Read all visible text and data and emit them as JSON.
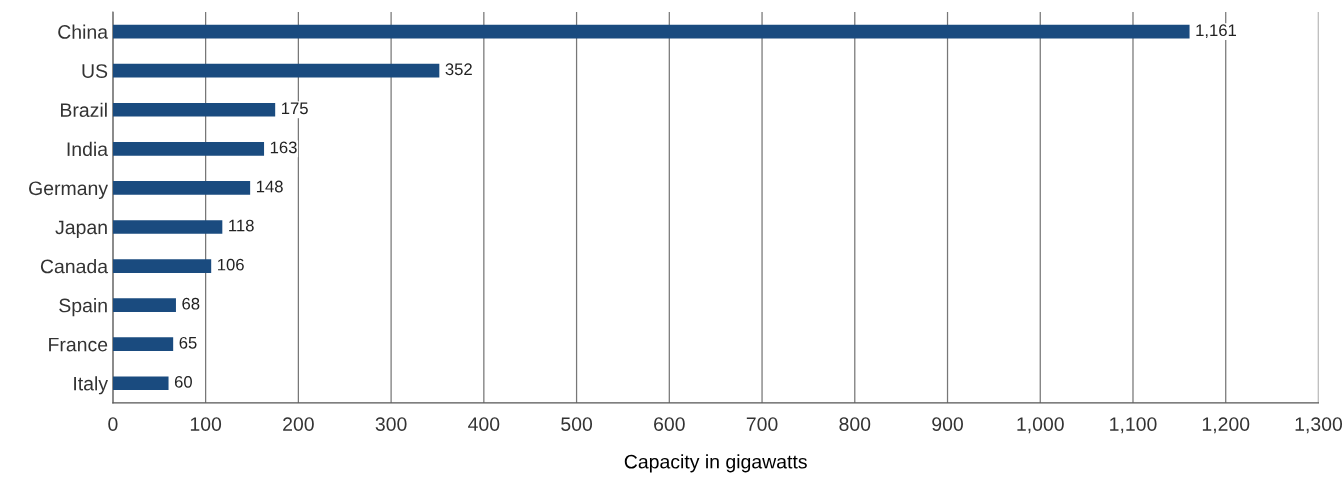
{
  "chart_data": {
    "type": "bar",
    "orientation": "horizontal",
    "xlabel": "Capacity in gigawatts",
    "categories": [
      "China",
      "US",
      "Brazil",
      "India",
      "Germany",
      "Japan",
      "Canada",
      "Spain",
      "France",
      "Italy"
    ],
    "values": [
      1161,
      352,
      175,
      163,
      148,
      118,
      106,
      68,
      65,
      60
    ],
    "value_labels": [
      "1,161",
      "352",
      "175",
      "163",
      "148",
      "118",
      "106",
      "68",
      "65",
      "60"
    ],
    "color": "#1a4b7f",
    "xlim": [
      0,
      1300
    ],
    "xticks": [
      0,
      100,
      200,
      300,
      400,
      500,
      600,
      700,
      800,
      900,
      {
        "value": 1000,
        "label": "1,000"
      },
      {
        "value": 1100,
        "label": "1,100"
      },
      {
        "value": 1200,
        "label": "1,200"
      },
      {
        "value": 1300,
        "label": "1,300"
      }
    ],
    "grid": "x"
  }
}
